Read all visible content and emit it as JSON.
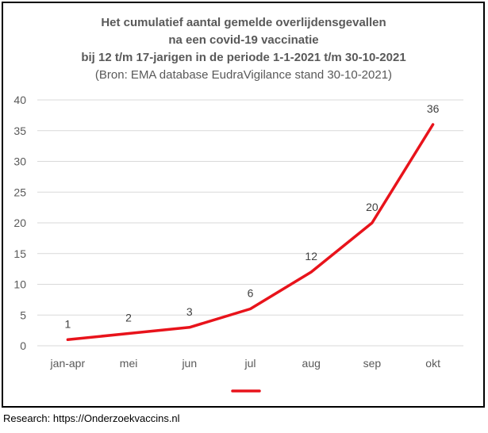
{
  "chart_data": {
    "type": "line",
    "title": [
      "Het cumulatief aantal gemelde overlijdensgevallen",
      "na een covid-19 vaccinatie",
      "bij 12 t/m 17-jarigen in de periode 1-1-2021 t/m 30-10-2021"
    ],
    "subtitle": "(Bron: EMA database EudraVigilance stand 30-10-2021)",
    "categories": [
      "jan-apr",
      "mei",
      "jun",
      "jul",
      "aug",
      "sep",
      "okt"
    ],
    "series": [
      {
        "values": [
          1,
          2,
          3,
          6,
          12,
          20,
          36
        ],
        "color": "#e8131b"
      }
    ],
    "data_labels": [
      "1",
      "2",
      "3",
      "6",
      "12",
      "20",
      "36"
    ],
    "ylim": [
      0,
      40
    ],
    "yticks": [
      "0",
      "5",
      "10",
      "15",
      "20",
      "25",
      "30",
      "35",
      "40"
    ],
    "grid": "horizontal",
    "legend": "bottom-center",
    "xlabel": "",
    "ylabel": ""
  },
  "footer": "Research: https://Onderzoekvaccins.nl"
}
